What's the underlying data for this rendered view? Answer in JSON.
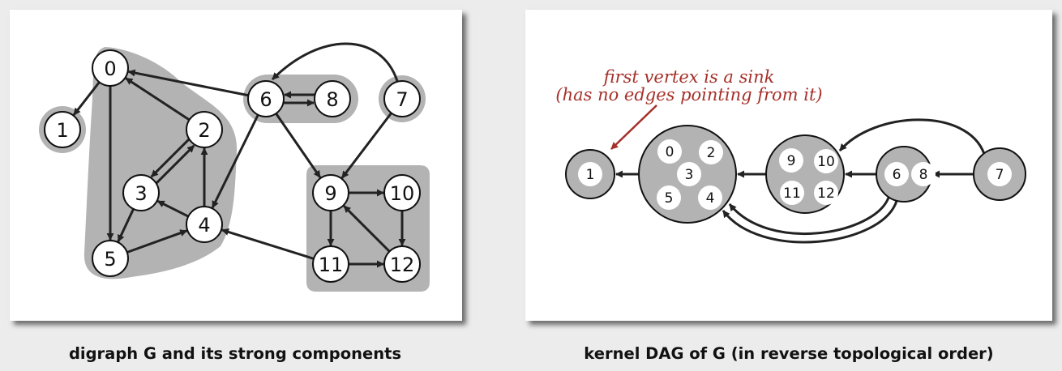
{
  "left": {
    "caption": "digraph G and its strong components",
    "vertices": [
      "0",
      "1",
      "2",
      "3",
      "4",
      "5",
      "6",
      "7",
      "8",
      "9",
      "10",
      "11",
      "12"
    ],
    "components": [
      {
        "name": "component-0-2-3-4-5",
        "members": [
          "0",
          "2",
          "3",
          "4",
          "5"
        ]
      },
      {
        "name": "component-1",
        "members": [
          "1"
        ]
      },
      {
        "name": "component-6-8",
        "members": [
          "6",
          "8"
        ]
      },
      {
        "name": "component-7",
        "members": [
          "7"
        ]
      },
      {
        "name": "component-9-10-11-12",
        "members": [
          "9",
          "10",
          "11",
          "12"
        ]
      }
    ],
    "edges": [
      [
        "0",
        "1"
      ],
      [
        "0",
        "5"
      ],
      [
        "2",
        "0"
      ],
      [
        "2",
        "3"
      ],
      [
        "3",
        "2"
      ],
      [
        "3",
        "5"
      ],
      [
        "4",
        "2"
      ],
      [
        "4",
        "3"
      ],
      [
        "5",
        "4"
      ],
      [
        "6",
        "0"
      ],
      [
        "6",
        "4"
      ],
      [
        "6",
        "8"
      ],
      [
        "6",
        "9"
      ],
      [
        "7",
        "6"
      ],
      [
        "7",
        "9"
      ],
      [
        "8",
        "6"
      ],
      [
        "9",
        "10"
      ],
      [
        "9",
        "11"
      ],
      [
        "10",
        "12"
      ],
      [
        "11",
        "4"
      ],
      [
        "11",
        "12"
      ],
      [
        "12",
        "9"
      ]
    ]
  },
  "right": {
    "caption": "kernel DAG of G (in reverse topological order)",
    "annotation_line1": "first vertex is a sink",
    "annotation_line2": "(has no edges pointing from it)",
    "nodes": [
      {
        "name": "kernel-node-1",
        "vertices": [
          "1"
        ]
      },
      {
        "name": "kernel-node-0-2-3-4-5",
        "vertices": [
          "0",
          "2",
          "3",
          "5",
          "4"
        ]
      },
      {
        "name": "kernel-node-9-10-11-12",
        "vertices": [
          "9",
          "10",
          "11",
          "12"
        ]
      },
      {
        "name": "kernel-node-6-8",
        "vertices": [
          "6",
          "8"
        ]
      },
      {
        "name": "kernel-node-7",
        "vertices": [
          "7"
        ]
      }
    ]
  },
  "colors": {
    "component_fill": "#b3b3b3",
    "annotation": "#a5302a",
    "edge": "#222222"
  }
}
